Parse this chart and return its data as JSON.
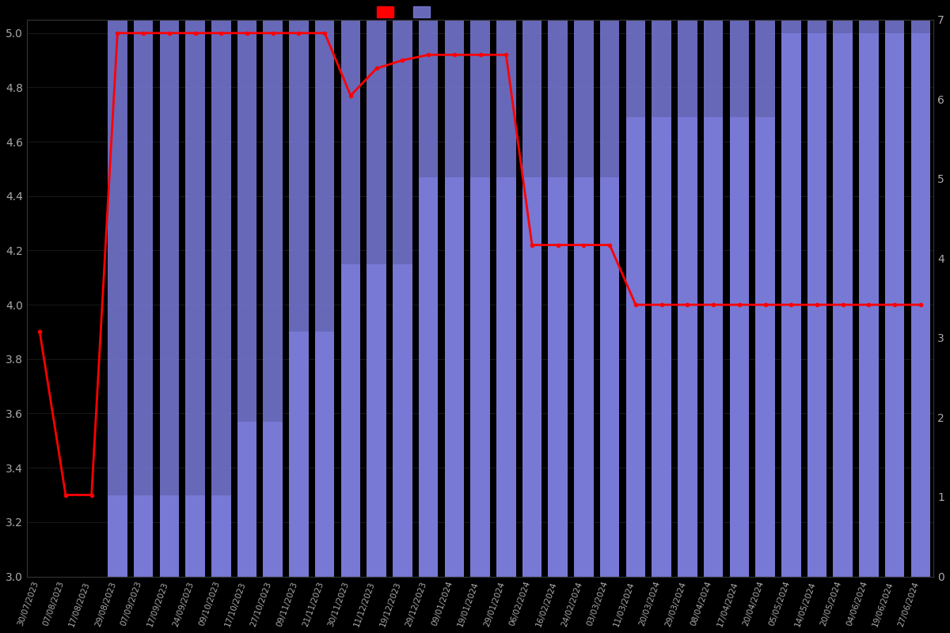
{
  "background_color": "#000000",
  "text_color": "#aaaaaa",
  "bar_color": "#7b7bdb",
  "line_color": "#ff0000",
  "all_dates": [
    "30/07/2023",
    "07/08/2023",
    "17/08/2023",
    "29/08/2023",
    "07/09/2023",
    "17/09/2023",
    "24/09/2023",
    "09/10/2023",
    "17/10/2023",
    "27/10/2023",
    "09/11/2023",
    "21/11/2023",
    "30/11/2023",
    "11/12/2023",
    "19/12/2023",
    "29/12/2023",
    "09/01/2024",
    "19/01/2024",
    "29/01/2024",
    "06/02/2024",
    "16/02/2024",
    "24/02/2024",
    "03/03/2024",
    "11/03/2024",
    "20/03/2024",
    "29/03/2024",
    "08/04/2024",
    "17/04/2024",
    "20/04/2024",
    "05/05/2024",
    "14/05/2024",
    "20/05/2024",
    "04/06/2024",
    "19/06/2024",
    "27/06/2024"
  ],
  "bar_indices": [
    3,
    4,
    5,
    6,
    7,
    8,
    9,
    10,
    11,
    12,
    13,
    14,
    15,
    16,
    17,
    18,
    19,
    20,
    21,
    22,
    23,
    24,
    25,
    26,
    27,
    28,
    29,
    30,
    31,
    32,
    33,
    34
  ],
  "bar_values": [
    3.3,
    3.3,
    3.3,
    3.3,
    3.3,
    3.57,
    3.57,
    3.9,
    3.9,
    4.15,
    4.15,
    4.15,
    4.47,
    4.47,
    4.47,
    4.47,
    4.47,
    4.47,
    4.47,
    4.47,
    4.69,
    4.69,
    4.69,
    4.69,
    4.69,
    4.69,
    5.0,
    5.0,
    5.0,
    5.0,
    5.0,
    5.0
  ],
  "line_values": [
    3.9,
    3.3,
    3.3,
    5.0,
    5.0,
    5.0,
    5.0,
    5.0,
    5.0,
    5.0,
    5.0,
    5.0,
    4.77,
    4.87,
    4.9,
    4.92,
    4.92,
    4.92,
    4.92,
    4.22,
    4.22,
    4.22,
    4.22,
    4.0,
    4.0,
    4.0,
    4.0,
    4.0,
    4.0,
    4.0,
    4.0,
    4.0,
    4.0,
    4.0,
    4.0
  ],
  "ylim_left": [
    3.0,
    5.05
  ],
  "ylim_right": [
    0,
    7
  ],
  "yticks_left": [
    3.0,
    3.2,
    3.4,
    3.6,
    3.8,
    4.0,
    4.2,
    4.4,
    4.6,
    4.8,
    5.0
  ],
  "yticks_right": [
    0,
    1,
    2,
    3,
    4,
    5,
    6,
    7
  ],
  "bar_width": 0.75
}
